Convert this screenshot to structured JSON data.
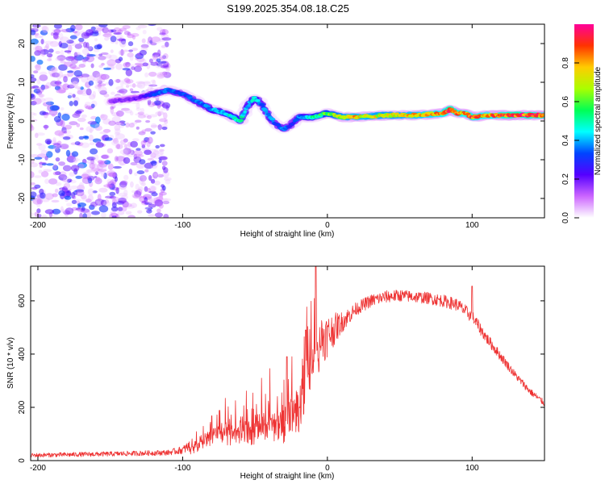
{
  "title": "S199.2025.354.08.18.C25",
  "chart_data": [
    {
      "type": "heatmap",
      "name": "spectrogram",
      "xlabel": "Height of straight line (km)",
      "ylabel": "Frequency (Hz)",
      "xlim": [
        -205,
        150
      ],
      "ylim": [
        -25,
        25
      ],
      "xticks": [
        -200,
        -100,
        0,
        100
      ],
      "yticks": [
        -20,
        -10,
        0,
        10,
        20
      ],
      "colorbar": {
        "label": "Normalized spectral amplitude",
        "range": [
          0,
          1
        ],
        "ticks": [
          "0.0",
          "0.2",
          "0.4",
          "0.6",
          "0.8"
        ],
        "colormap": [
          "#ffffff",
          "#cc66ff",
          "#5500ff",
          "#0044ff",
          "#00ffff",
          "#00ff55",
          "#aaff00",
          "#ffcc00",
          "#ff3300",
          "#ff0099"
        ]
      },
      "ridge": {
        "name": "dominant frequency track",
        "x": [
          -150,
          -130,
          -120,
          -110,
          -100,
          -90,
          -80,
          -70,
          -60,
          -55,
          -50,
          -45,
          -40,
          -35,
          -30,
          -25,
          -20,
          -10,
          0,
          10,
          20,
          40,
          60,
          80,
          85,
          90,
          95,
          100,
          110,
          130,
          150
        ],
        "y": [
          5,
          6,
          7,
          8,
          7,
          5,
          3,
          2,
          0,
          4,
          6,
          4,
          1,
          -1,
          -2,
          -1,
          1,
          1,
          2,
          1,
          1,
          1.5,
          1.5,
          2,
          3,
          2,
          2,
          1,
          1.5,
          1.5,
          1.5
        ],
        "amplitude": [
          0.15,
          0.2,
          0.3,
          0.35,
          0.3,
          0.35,
          0.4,
          0.45,
          0.5,
          0.4,
          0.45,
          0.35,
          0.4,
          0.3,
          0.35,
          0.3,
          0.35,
          0.5,
          0.6,
          0.7,
          0.75,
          0.7,
          0.75,
          0.8,
          0.9,
          0.85,
          0.8,
          0.85,
          0.8,
          0.9,
          0.85
        ]
      },
      "noise_region_x": [
        -205,
        -110
      ]
    },
    {
      "type": "line",
      "name": "snr",
      "xlabel": "Height of straight line (km)",
      "ylabel": "SNR (10 * v/v)",
      "xlim": [
        -205,
        150
      ],
      "ylim": [
        0,
        730
      ],
      "xticks": [
        -200,
        -100,
        0,
        100
      ],
      "yticks": [
        0,
        200,
        400,
        600
      ],
      "color": "#ee3333",
      "envelope": {
        "x": [
          -205,
          -150,
          -110,
          -100,
          -90,
          -80,
          -70,
          -60,
          -50,
          -40,
          -30,
          -20,
          -15,
          -10,
          0,
          10,
          20,
          30,
          40,
          50,
          60,
          70,
          80,
          90,
          100,
          110,
          120,
          130,
          140,
          150
        ],
        "y": [
          20,
          25,
          30,
          40,
          70,
          110,
          130,
          140,
          150,
          160,
          170,
          220,
          330,
          440,
          470,
          520,
          570,
          600,
          615,
          620,
          615,
          610,
          600,
          585,
          540,
          460,
          390,
          320,
          260,
          215
        ]
      },
      "noise": {
        "x": [
          -205,
          -110,
          -100,
          -90,
          -60,
          -20,
          -15,
          -10,
          0,
          10,
          20,
          60,
          100,
          130,
          150
        ],
        "y": [
          8,
          10,
          15,
          30,
          60,
          90,
          120,
          130,
          80,
          40,
          25,
          22,
          25,
          15,
          12
        ]
      },
      "peaks": [
        {
          "x": -8,
          "y": 730
        },
        {
          "x": 100,
          "y": 655
        },
        {
          "x": -15,
          "y": 490
        },
        {
          "x": -28,
          "y": 390
        }
      ]
    }
  ]
}
